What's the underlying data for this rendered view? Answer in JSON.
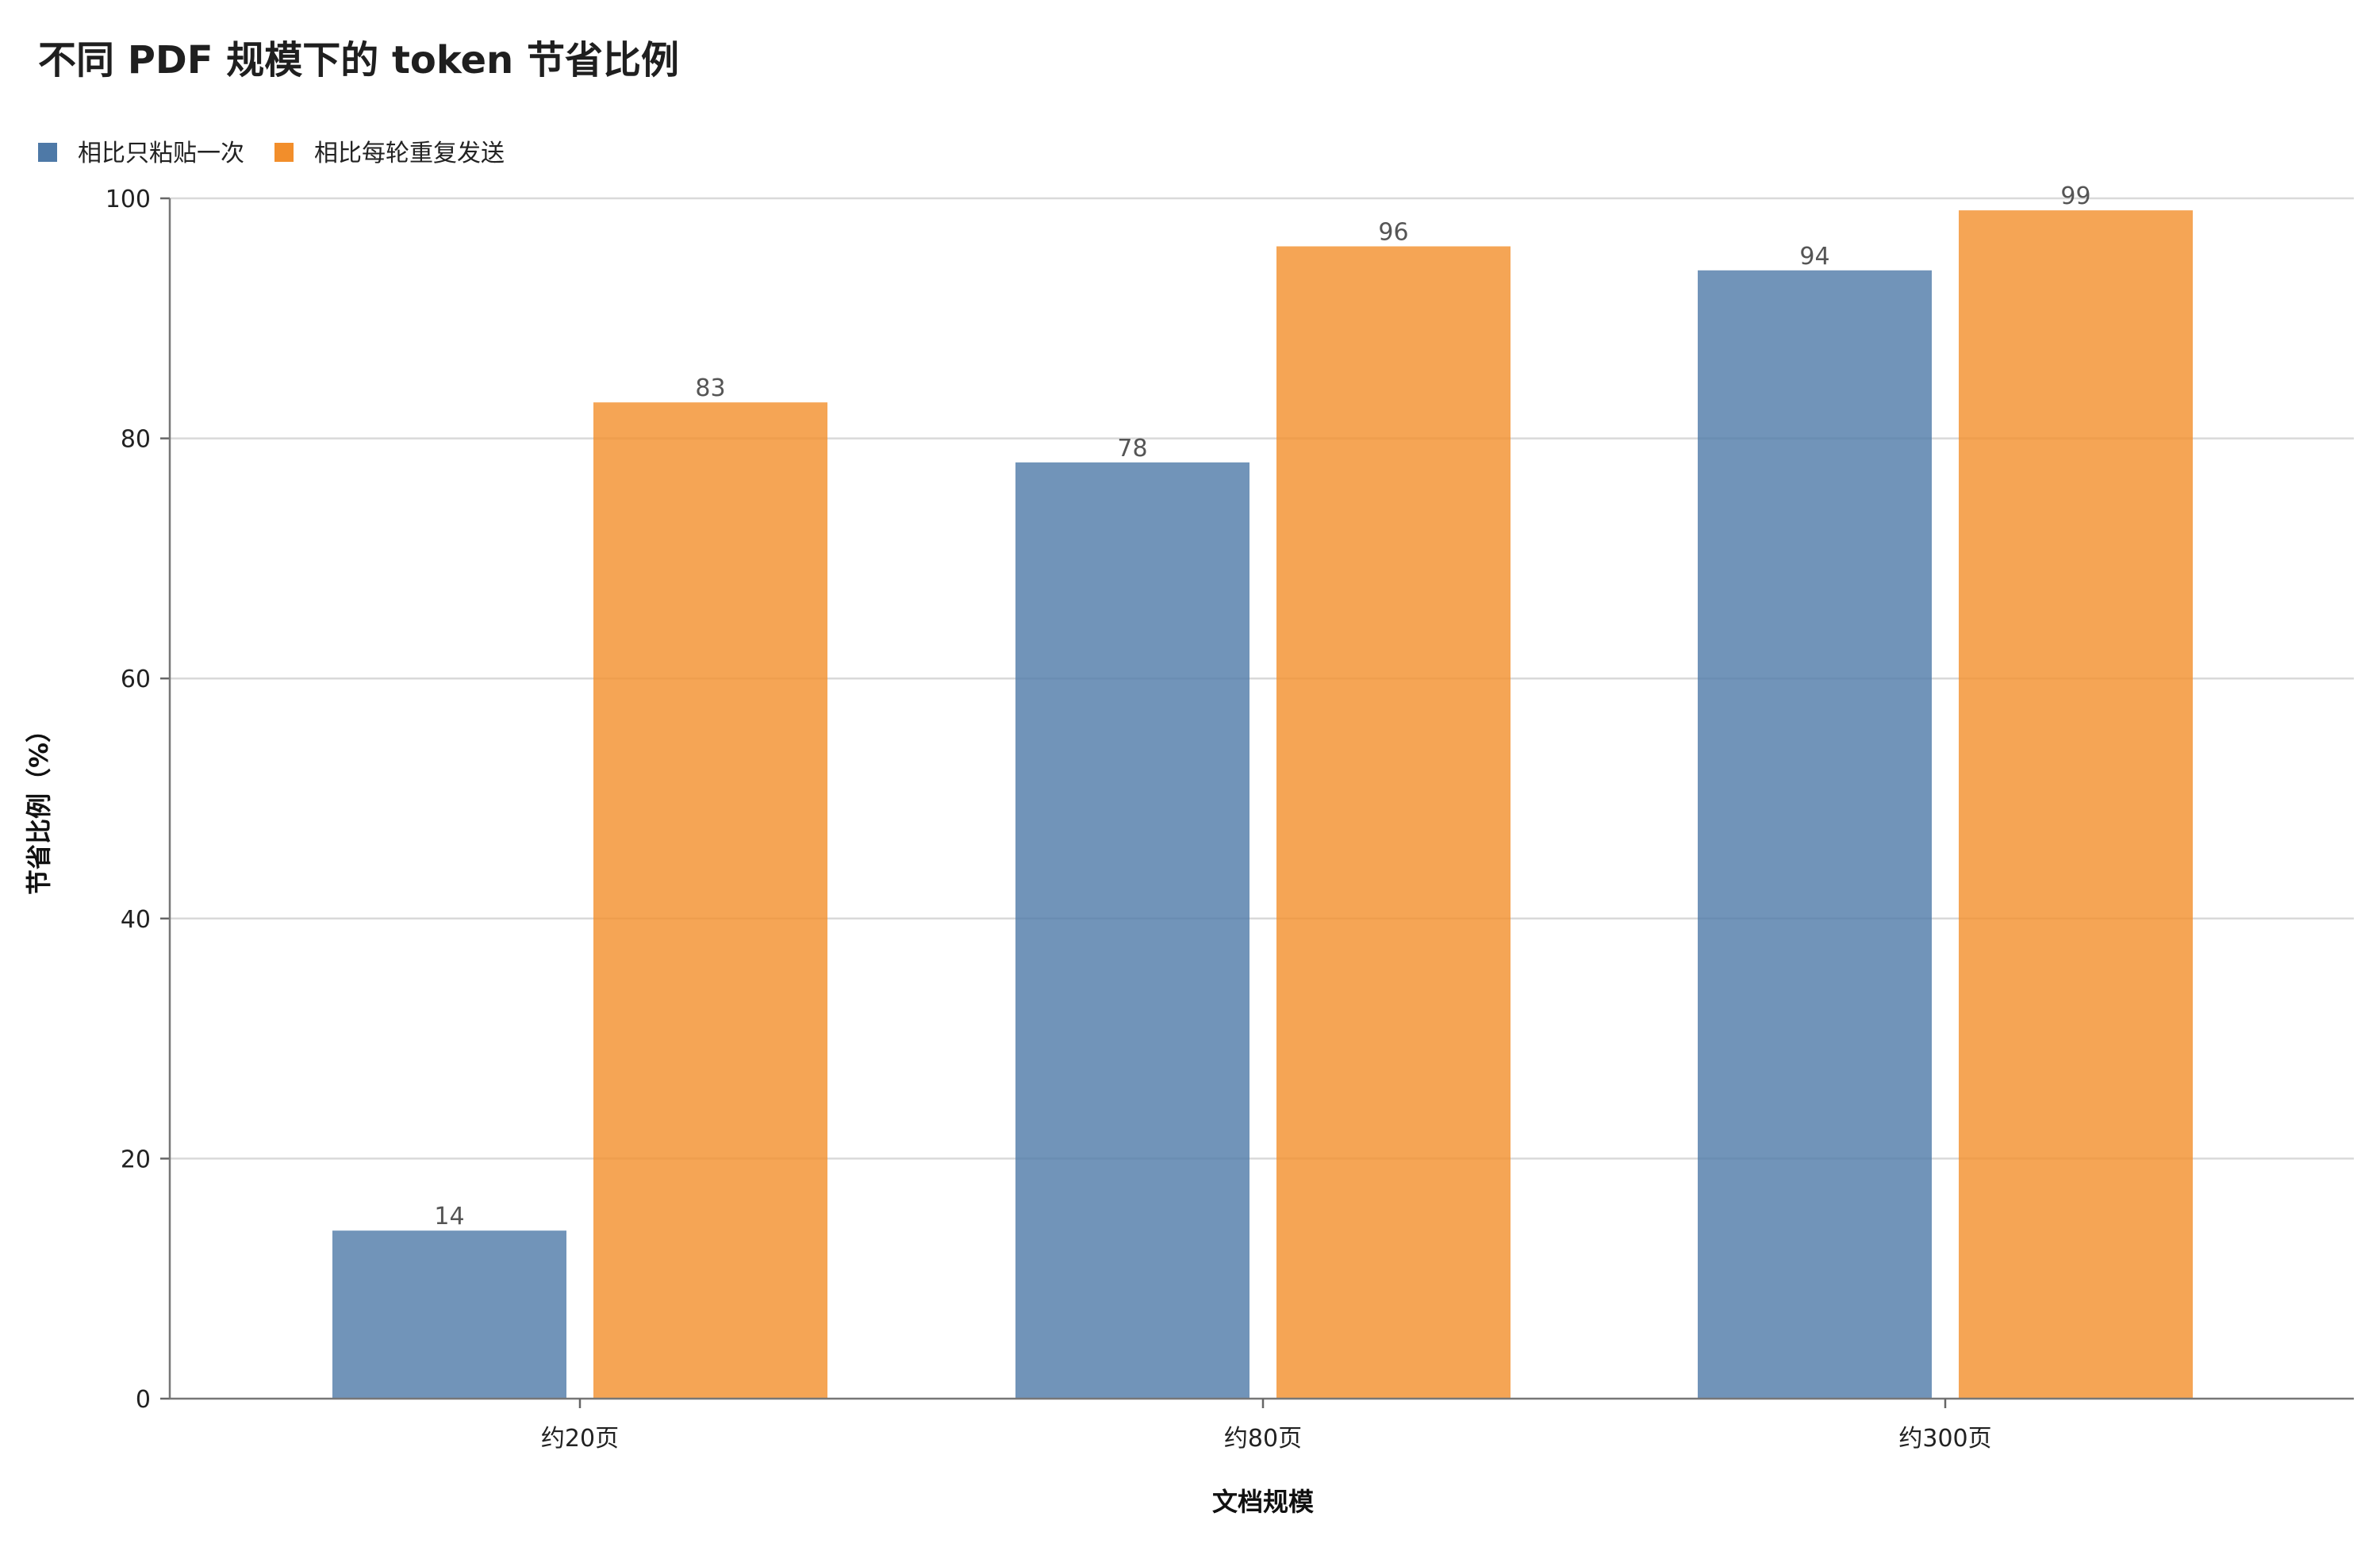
{
  "chart_data": {
    "type": "bar",
    "title": "不同 PDF 规模下的 token 节省比例",
    "xlabel": "文档规模",
    "ylabel": "节省比例（%）",
    "categories": [
      "约20页",
      "约80页",
      "约300页"
    ],
    "series": [
      {
        "name": "相比只粘贴一次",
        "values": [
          14,
          78,
          94
        ],
        "color": "#4e79a7"
      },
      {
        "name": "相比每轮重复发送",
        "values": [
          83,
          96,
          99
        ],
        "color": "#f28e2b"
      }
    ],
    "ylim": [
      0,
      100
    ],
    "yticks": [
      0,
      20,
      40,
      60,
      80,
      100
    ],
    "grid": true,
    "legend": "top-left",
    "value_labels": true
  }
}
